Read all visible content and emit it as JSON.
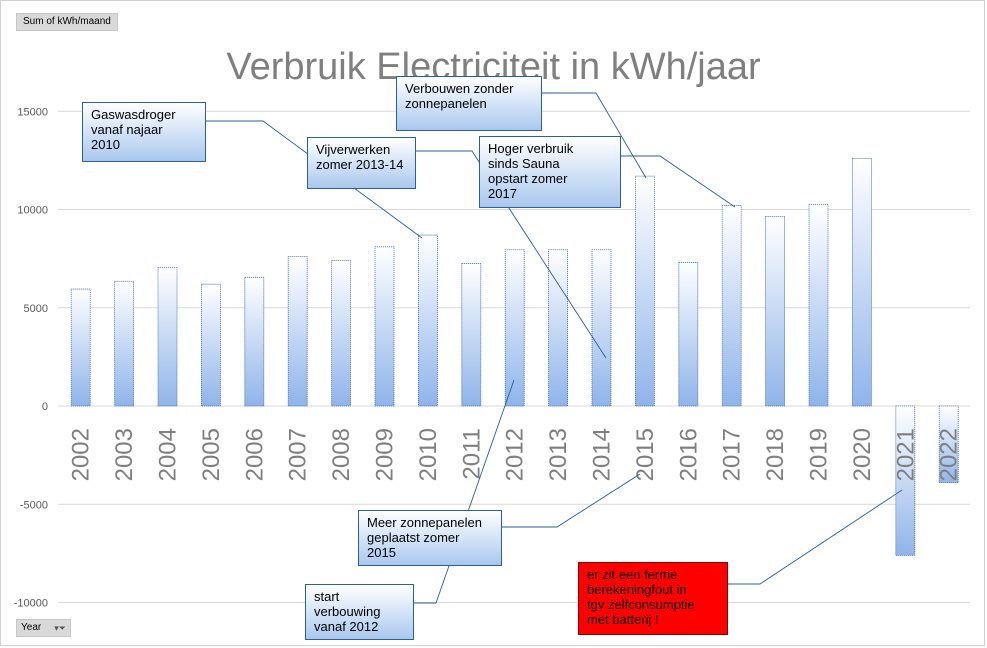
{
  "field_buttons": {
    "measure": "Sum of kWh/maand",
    "axis": "Year",
    "axis_controls": "▾⏷"
  },
  "chart_data": {
    "type": "bar",
    "title": "Verbruik Electriciteit in kWh/jaar",
    "xlabel": "",
    "ylabel": "",
    "ylim": [
      -10000,
      15000
    ],
    "yticks": [
      -10000,
      -5000,
      0,
      5000,
      10000,
      15000
    ],
    "ytick_labels": [
      "-10000",
      "-5000",
      "0",
      "5000",
      "10000",
      "15000"
    ],
    "grid": true,
    "legend": "none",
    "bar_color_top": "#ffffff",
    "bar_color_bottom": "#8fb4ea",
    "categories": [
      "2002",
      "2003",
      "2004",
      "2005",
      "2006",
      "2007",
      "2008",
      "2009",
      "2010",
      "2011",
      "2012",
      "2013",
      "2014",
      "2015",
      "2016",
      "2017",
      "2018",
      "2019",
      "2020",
      "2021",
      "2022"
    ],
    "values": [
      5950,
      6350,
      7050,
      6200,
      6550,
      7600,
      7400,
      8100,
      8700,
      7250,
      7950,
      7950,
      7950,
      11700,
      7300,
      10200,
      9650,
      10250,
      12600,
      -7600,
      -3900
    ],
    "annotations": [
      {
        "text": "Gaswasdroger vanaf najaar 2010",
        "target": "2010"
      },
      {
        "text": "Vijverwerken zomer 2013-14",
        "target": "2014"
      },
      {
        "text": "Verbouwen zonder zonnepanelen",
        "target": "2017"
      },
      {
        "text": "Hoger verbruik sinds Sauna opstart  zomer 2017",
        "target": "2017"
      },
      {
        "text": "Meer zonnepanelen geplaatst zomer 2015",
        "target": "2015"
      },
      {
        "text": "start verbouwing vanaf 2012",
        "target": "2012"
      },
      {
        "text": "er zit een ferme berekeningfout in tgv zelfconsumptie met batterij !",
        "target": "2021"
      }
    ]
  },
  "callouts": {
    "gaswasdroger": [
      "Gaswasdroger",
      "vanaf najaar",
      "2010"
    ],
    "vijver": [
      "Vijverwerken",
      "zomer 2013-14"
    ],
    "verbouwen": [
      "Verbouwen zonder",
      "zonnepanelen"
    ],
    "hoger": [
      "Hoger verbruik",
      "sinds Sauna",
      "opstart  zomer",
      "2017"
    ],
    "meer": [
      "Meer zonnepanelen",
      "geplaatst zomer",
      "2015"
    ],
    "start": [
      "start",
      "verbouwing",
      "vanaf 2012"
    ],
    "fout": [
      "er zit een ferme",
      "berekeningfout in",
      "tgv zelfconsumptie",
      "met batterij !"
    ]
  },
  "colors": {
    "gridline": "#d9d9d9",
    "axis_text": "#595959",
    "category_text": "#7f7f7f",
    "callout_border": "#2e5f94",
    "leader_line": "#2e5f94",
    "warning_fill": "#ff0000"
  }
}
